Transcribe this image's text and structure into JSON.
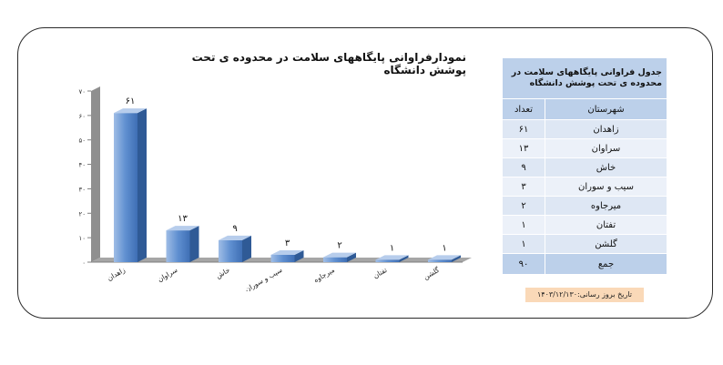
{
  "chart_data": {
    "type": "bar",
    "title": "نمودارفراوانی پایگاههای سلامت در محدوده ی تحت پوشش دانشگاه",
    "categories": [
      "زاهدان",
      "سراوان",
      "خاش",
      "سیب و سوران",
      "میرجاوه",
      "تفتان",
      "گلشن"
    ],
    "values": [
      61,
      13,
      9,
      3,
      2,
      1,
      1
    ],
    "value_labels": [
      "۶۱",
      "۱۳",
      "۹",
      "۳",
      "۲",
      "۱",
      "۱"
    ],
    "ylim": [
      0,
      70
    ],
    "yticks": [
      0,
      10,
      20,
      30,
      40,
      50,
      60,
      70
    ],
    "ytick_labels": [
      "۰",
      "۱۰",
      "۲۰",
      "۳۰",
      "۴۰",
      "۵۰",
      "۶۰",
      "۷۰"
    ],
    "grid": false,
    "bar_color": "#4f81bd",
    "style": "3d-column"
  },
  "table": {
    "caption": "جدول فراوانی پایگاههای سلامت در محدوده ی تحت پوشش دانشگاه",
    "col_city": "شهرستان",
    "col_count": "تعداد",
    "rows": [
      {
        "city": "زاهدان",
        "count": "۶۱"
      },
      {
        "city": "سراوان",
        "count": "۱۳"
      },
      {
        "city": "خاش",
        "count": "۹"
      },
      {
        "city": "سیب و سوران",
        "count": "۳"
      },
      {
        "city": "میرجاوه",
        "count": "۲"
      },
      {
        "city": "تفتان",
        "count": "۱"
      },
      {
        "city": "گلشن",
        "count": "۱"
      }
    ],
    "total_label": "جمع",
    "total_value": "۹۰"
  },
  "update_date": "تاریخ بروز رسانی:۱۴۰۳/۱۲/۱۳۰",
  "colors": {
    "table_header": "#bcd0ea",
    "table_row": "#dee7f4",
    "date_bg": "#fad9b8"
  }
}
